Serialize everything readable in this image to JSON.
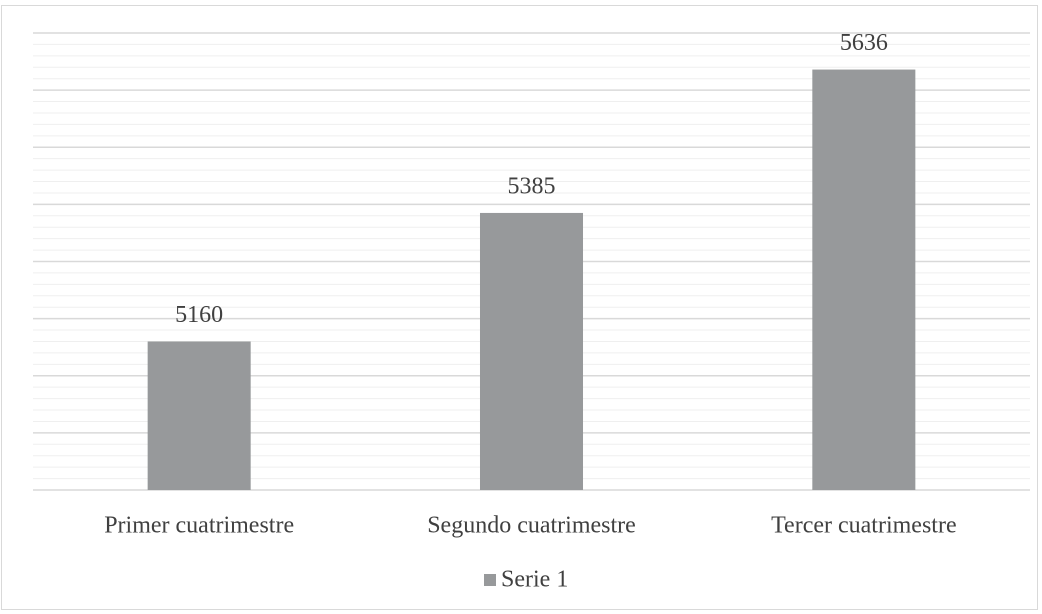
{
  "chart_data": {
    "type": "bar",
    "categories": [
      "Primer cuatrimestre",
      "Segundo cuatrimestre",
      "Tercer cuatrimestre"
    ],
    "series": [
      {
        "name": "Serie 1",
        "color": "#97999b",
        "values": [
          5160,
          5385,
          5636
        ]
      }
    ],
    "ylim": [
      4900,
      5700
    ],
    "yticks": [
      4900,
      5000,
      5100,
      5200,
      5300,
      5400,
      5500,
      5600,
      5700
    ],
    "minor_yticks": [
      4920,
      4940,
      4960,
      4980,
      5020,
      5040,
      5060,
      5080,
      5120,
      5140,
      5160,
      5180,
      5220,
      5240,
      5260,
      5280,
      5320,
      5340,
      5360,
      5380,
      5420,
      5440,
      5460,
      5480,
      5520,
      5540,
      5560,
      5580,
      5620,
      5640,
      5660,
      5680
    ],
    "ytick_labels": false,
    "grid": true,
    "minor_grid": true,
    "legend": "bottom",
    "data_labels": true
  }
}
